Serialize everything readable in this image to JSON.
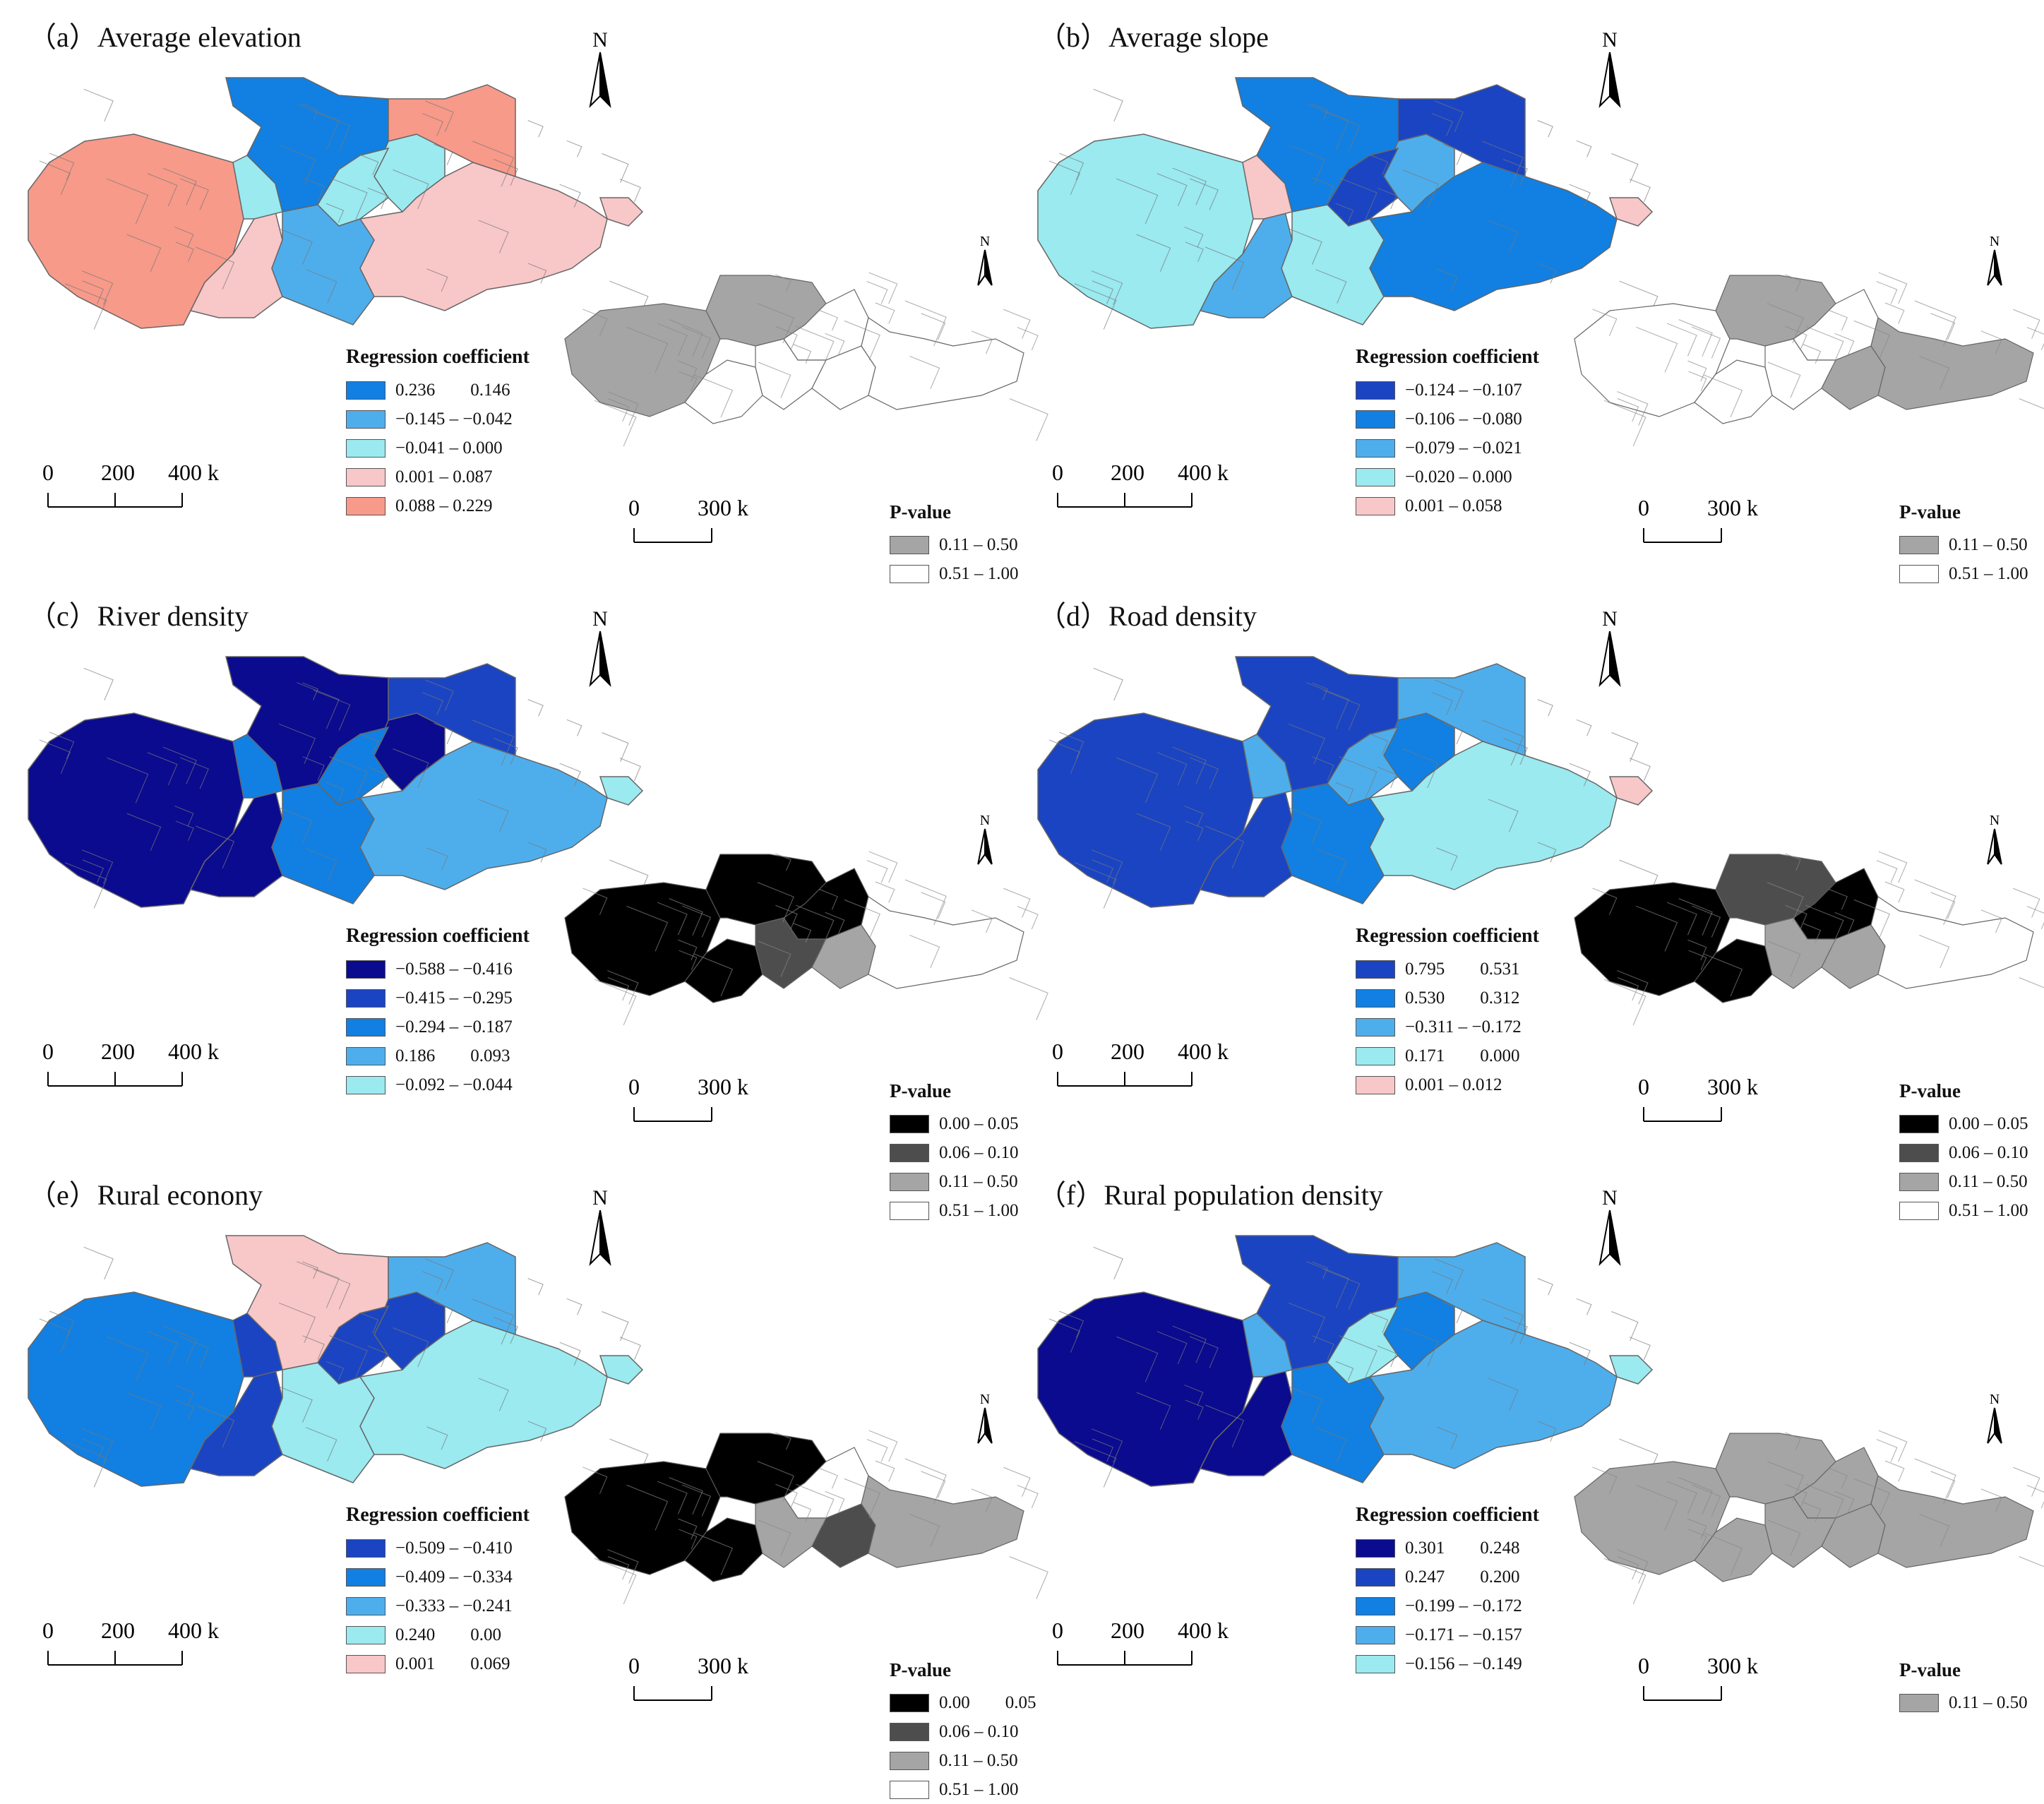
{
  "colors": {
    "navy": "#0b0b8f",
    "dark_blue": "#1a44c2",
    "blue": "#1180e2",
    "light_blue": "#4eaeec",
    "cyan": "#9aeaf0",
    "pink": "#f8c7c8",
    "salmon": "#f79a8a",
    "black": "#000000",
    "dark_grey": "#4d4d4d",
    "grey": "#a5a5a5",
    "white": "#ffffff"
  },
  "common": {
    "legend_title": "Regression coefficient",
    "p_title": "P-value",
    "north_label": "N",
    "scale_main": [
      "0",
      "200",
      "400 km"
    ],
    "scale_sub": [
      "0",
      "300 km"
    ]
  },
  "panels": [
    {
      "title": "（a）Average elevation",
      "legend": [
        {
          "label": "0.236  0.146",
          "color": "blue"
        },
        {
          "label": "−0.145 – −0.042",
          "color": "light_blue"
        },
        {
          "label": "−0.041 – 0.000",
          "color": "cyan"
        },
        {
          "label": "0.001 – 0.087",
          "color": "pink"
        },
        {
          "label": "0.088 – 0.229",
          "color": "salmon"
        }
      ],
      "p_legend": [
        {
          "label": "0.11 – 0.50",
          "color": "grey"
        },
        {
          "label": "0.51 – 1.00",
          "color": "white"
        }
      ],
      "map_colors": [
        "salmon",
        "pink",
        "cyan",
        "blue",
        "light_blue",
        "cyan",
        "pink",
        "salmon",
        "pink",
        "cyan"
      ],
      "p_colors": [
        "grey",
        "white",
        "grey",
        "white",
        "white",
        "white",
        "white"
      ]
    },
    {
      "title": "（b）Average slope",
      "legend": [
        {
          "label": "−0.124 – −0.107",
          "color": "dark_blue"
        },
        {
          "label": "−0.106 – −0.080",
          "color": "blue"
        },
        {
          "label": "−0.079 – −0.021",
          "color": "light_blue"
        },
        {
          "label": "−0.020 – 0.000",
          "color": "cyan"
        },
        {
          "label": "0.001 – 0.058",
          "color": "pink"
        }
      ],
      "p_legend": [
        {
          "label": "0.11 – 0.50",
          "color": "grey"
        },
        {
          "label": "0.51 – 1.00",
          "color": "white"
        }
      ],
      "map_colors": [
        "cyan",
        "light_blue",
        "pink",
        "blue",
        "cyan",
        "light_blue",
        "blue",
        "dark_blue",
        "pink",
        "dark_blue"
      ],
      "p_colors": [
        "white",
        "white",
        "grey",
        "white",
        "white",
        "grey",
        "grey"
      ]
    },
    {
      "title": "（c）River density",
      "legend": [
        {
          "label": "−0.588 – −0.416",
          "color": "navy"
        },
        {
          "label": "−0.415 – −0.295",
          "color": "dark_blue"
        },
        {
          "label": "−0.294 – −0.187",
          "color": "blue"
        },
        {
          "label": "0.186  0.093",
          "color": "light_blue"
        },
        {
          "label": "−0.092 – −0.044",
          "color": "cyan"
        }
      ],
      "p_legend": [
        {
          "label": "0.00 – 0.05",
          "color": "black"
        },
        {
          "label": "0.06 – 0.10",
          "color": "dark_grey"
        },
        {
          "label": "0.11 – 0.50",
          "color": "grey"
        },
        {
          "label": "0.51 – 1.00",
          "color": "white"
        }
      ],
      "map_colors": [
        "navy",
        "navy",
        "blue",
        "navy",
        "blue",
        "navy",
        "light_blue",
        "dark_blue",
        "cyan",
        "blue"
      ],
      "p_colors": [
        "black",
        "black",
        "black",
        "black",
        "dark_grey",
        "grey",
        "white"
      ]
    },
    {
      "title": "（d）Road density",
      "legend": [
        {
          "label": "0.795  0.531",
          "color": "dark_blue"
        },
        {
          "label": "0.530  0.312",
          "color": "blue"
        },
        {
          "label": "−0.311 – −0.172",
          "color": "light_blue"
        },
        {
          "label": "0.171  0.000",
          "color": "cyan"
        },
        {
          "label": "0.001 – 0.012",
          "color": "pink"
        }
      ],
      "p_legend": [
        {
          "label": "0.00 – 0.05",
          "color": "black"
        },
        {
          "label": "0.06 – 0.10",
          "color": "dark_grey"
        },
        {
          "label": "0.11 – 0.50",
          "color": "grey"
        },
        {
          "label": "0.51 – 1.00",
          "color": "white"
        }
      ],
      "map_colors": [
        "dark_blue",
        "dark_blue",
        "light_blue",
        "dark_blue",
        "blue",
        "blue",
        "cyan",
        "light_blue",
        "pink",
        "light_blue"
      ],
      "p_colors": [
        "black",
        "black",
        "dark_grey",
        "black",
        "grey",
        "grey",
        "white"
      ]
    },
    {
      "title": "（e）Rural econony",
      "legend": [
        {
          "label": "−0.509 – −0.410",
          "color": "dark_blue"
        },
        {
          "label": "−0.409 – −0.334",
          "color": "blue"
        },
        {
          "label": "−0.333 – −0.241",
          "color": "light_blue"
        },
        {
          "label": "0.240  0.00",
          "color": "cyan"
        },
        {
          "label": "0.001  0.069",
          "color": "pink"
        }
      ],
      "p_legend": [
        {
          "label": "0.00  0.05",
          "color": "black"
        },
        {
          "label": "0.06 – 0.10",
          "color": "dark_grey"
        },
        {
          "label": "0.11 – 0.50",
          "color": "grey"
        },
        {
          "label": "0.51 – 1.00",
          "color": "white"
        }
      ],
      "map_colors": [
        "blue",
        "dark_blue",
        "dark_blue",
        "pink",
        "cyan",
        "dark_blue",
        "cyan",
        "light_blue",
        "cyan",
        "dark_blue"
      ],
      "p_colors": [
        "black",
        "black",
        "black",
        "white",
        "grey",
        "dark_grey",
        "grey"
      ]
    },
    {
      "title": "（f）Rural population density",
      "legend": [
        {
          "label": "0.301  0.248",
          "color": "navy"
        },
        {
          "label": "0.247  0.200",
          "color": "dark_blue"
        },
        {
          "label": "−0.199 – −0.172",
          "color": "blue"
        },
        {
          "label": "−0.171 – −0.157",
          "color": "light_blue"
        },
        {
          "label": "−0.156 – −0.149",
          "color": "cyan"
        }
      ],
      "p_legend": [
        {
          "label": "0.11 – 0.50",
          "color": "grey"
        }
      ],
      "map_colors": [
        "navy",
        "navy",
        "light_blue",
        "dark_blue",
        "blue",
        "blue",
        "light_blue",
        "light_blue",
        "cyan",
        "cyan"
      ],
      "p_colors": [
        "grey",
        "grey",
        "grey",
        "grey",
        "grey",
        "grey",
        "grey"
      ]
    }
  ]
}
